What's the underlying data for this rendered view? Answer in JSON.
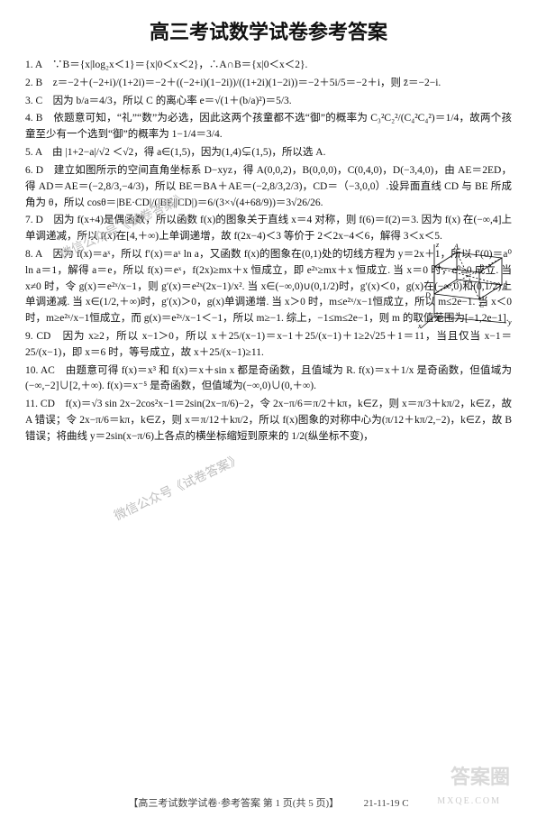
{
  "title": "高三考试数学试卷参考答案",
  "title_fontsize": 22,
  "body_fontsize": 11.5,
  "text_color": "#111111",
  "background_color": "#ffffff",
  "watermark_color": "#bdbdbd",
  "watermarks": {
    "wm1": "微信公众号《试卷答案》",
    "wm2": "微信公众号《试卷答案》",
    "wm3": "答案圈",
    "wm4": "MXQE.COM"
  },
  "items": [
    {
      "n": "1. A",
      "body": "∵B＝{x|log₂x＜1}＝{x|0＜x＜2}，∴A∩B＝{x|0＜x＜2}."
    },
    {
      "n": "2. B",
      "body": "z＝−2＋(−2+i)/(1+2i)＝−2＋((−2+i)(1−2i))/((1+2i)(1−2i))＝−2＋5i/5＝−2＋i，则 z̄＝−2−i."
    },
    {
      "n": "3. C",
      "body": "因为 b/a＝4/3，所以 C 的离心率 e＝√(1＋(b/a)²)＝5/3."
    },
    {
      "n": "4. B",
      "body": "依题意可知，“礼”“数”为必选，因此这两个孩童都不选“御”的概率为 C₃²C₂²/(C₄²C₄²)＝1/4，故两个孩童至少有一个选到“御”的概率为 1−1/4＝3/4."
    },
    {
      "n": "5. A",
      "body": "由 |1+2−a|/√2 ＜√2，得 a∈(1,5)，因为(1,4)⊊(1,5)，所以选 A."
    },
    {
      "n": "6. D",
      "body": "建立如图所示的空间直角坐标系 D−xyz，得 A(0,0,2)，B(0,0,0)，C(0,4,0)，D(−3,4,0)，由 AE＝2ED，得 AD＝AE＝(−2,8/3,−4/3)，所以 BE＝BA＋AE＝(−2,8/3,2/3)，CD＝（−3,0,0）.设异面直线 CD 与 BE 所成角为 θ，所以 cosθ＝|BE·CD|/(|BE||CD|)＝6/(3×√(4+68/9))＝3√26/26."
    },
    {
      "n": "7. D",
      "body": "因为 f(x+4)是偶函数，所以函数 f(x)的图象关于直线 x＝4 对称，则 f(6)＝f(2)＝3. 因为 f(x) 在(−∞,4]上单调递减，所以 f(x)在[4,＋∞)上单调递增，故 f(2x−4)＜3 等价于 2＜2x−4＜6，解得 3＜x＜5."
    },
    {
      "n": "8. A",
      "body": "因为 f(x)＝aˣ，所以 f′(x)＝aˣ ln a，又函数 f(x)的图象在(0,1)处的切线方程为 y＝2x＋1，所以 f′(0)＝a⁰ ln a＝1，解得 a＝e，所以 f(x)＝eˣ，f(2x)≥mx＋x 恒成立，即 e²ˣ≥mx＋x 恒成立. 当 x＝0 时，e⁰≥0 成立. 当 x≠0 时，令 g(x)＝e²ˣ/x−1，则 g′(x)＝e²ˣ(2x−1)/x². 当 x∈(−∞,0)∪(0,1/2)时，g′(x)＜0，g(x)在(−∞,0)和(0,1/2)上单调递减. 当 x∈(1/2,＋∞)时，g′(x)＞0，g(x)单调递增. 当 x＞0 时，m≤e²ˣ/x−1恒成立，所以 m≤2e−1. 当 x＜0 时，m≥e²ˣ/x−1恒成立，而 g(x)＝e²ˣ/x−1＜−1，所以 m≥−1. 综上，−1≤m≤2e−1，则 m 的取值范围为[−1,2e−1]."
    },
    {
      "n": "9. CD",
      "body": "因为 x≥2，所以 x−1＞0，所以 x＋25/(x−1)＝x−1＋25/(x−1)＋1≥2√25＋1＝11，当且仅当 x−1＝25/(x−1)，即 x＝6 时，等号成立，故 x＋25/(x−1)≥11."
    },
    {
      "n": "10. AC",
      "body": "由题意可得 f(x)＝x³ 和 f(x)＝x＋sin x 都是奇函数，且值域为 R. f(x)＝x＋1/x 是奇函数，但值域为(−∞,−2]∪[2,＋∞). f(x)＝x⁻⁵ 是奇函数，但值域为(−∞,0)∪(0,＋∞)."
    },
    {
      "n": "11. CD",
      "body": "f(x)＝√3 sin 2x−2cos²x−1＝2sin(2x−π/6)−2，令 2x−π/6＝π/2＋kπ，k∈Z，则 x＝π/3＋kπ/2，k∈Z，故 A 错误；令 2x−π/6＝kπ，k∈Z，则 x＝π/12＋kπ/2，所以 f(x)图象的对称中心为(π/12＋kπ/2,−2)，k∈Z，故 B 错误；将曲线 y＝2sin(x−π/6)上各点的横坐标缩短到原来的 1/2(纵坐标不变)，"
    }
  ],
  "footer": "【高三考试数学试卷·参考答案 第 1 页(共 5 页)】　　　21-11-19 C",
  "figure": {
    "type": "3d-cube-axes",
    "stroke": "#000000",
    "label_color": "#000000",
    "labels": [
      "A",
      "B",
      "C",
      "D",
      "E",
      "x",
      "y",
      "z"
    ]
  }
}
